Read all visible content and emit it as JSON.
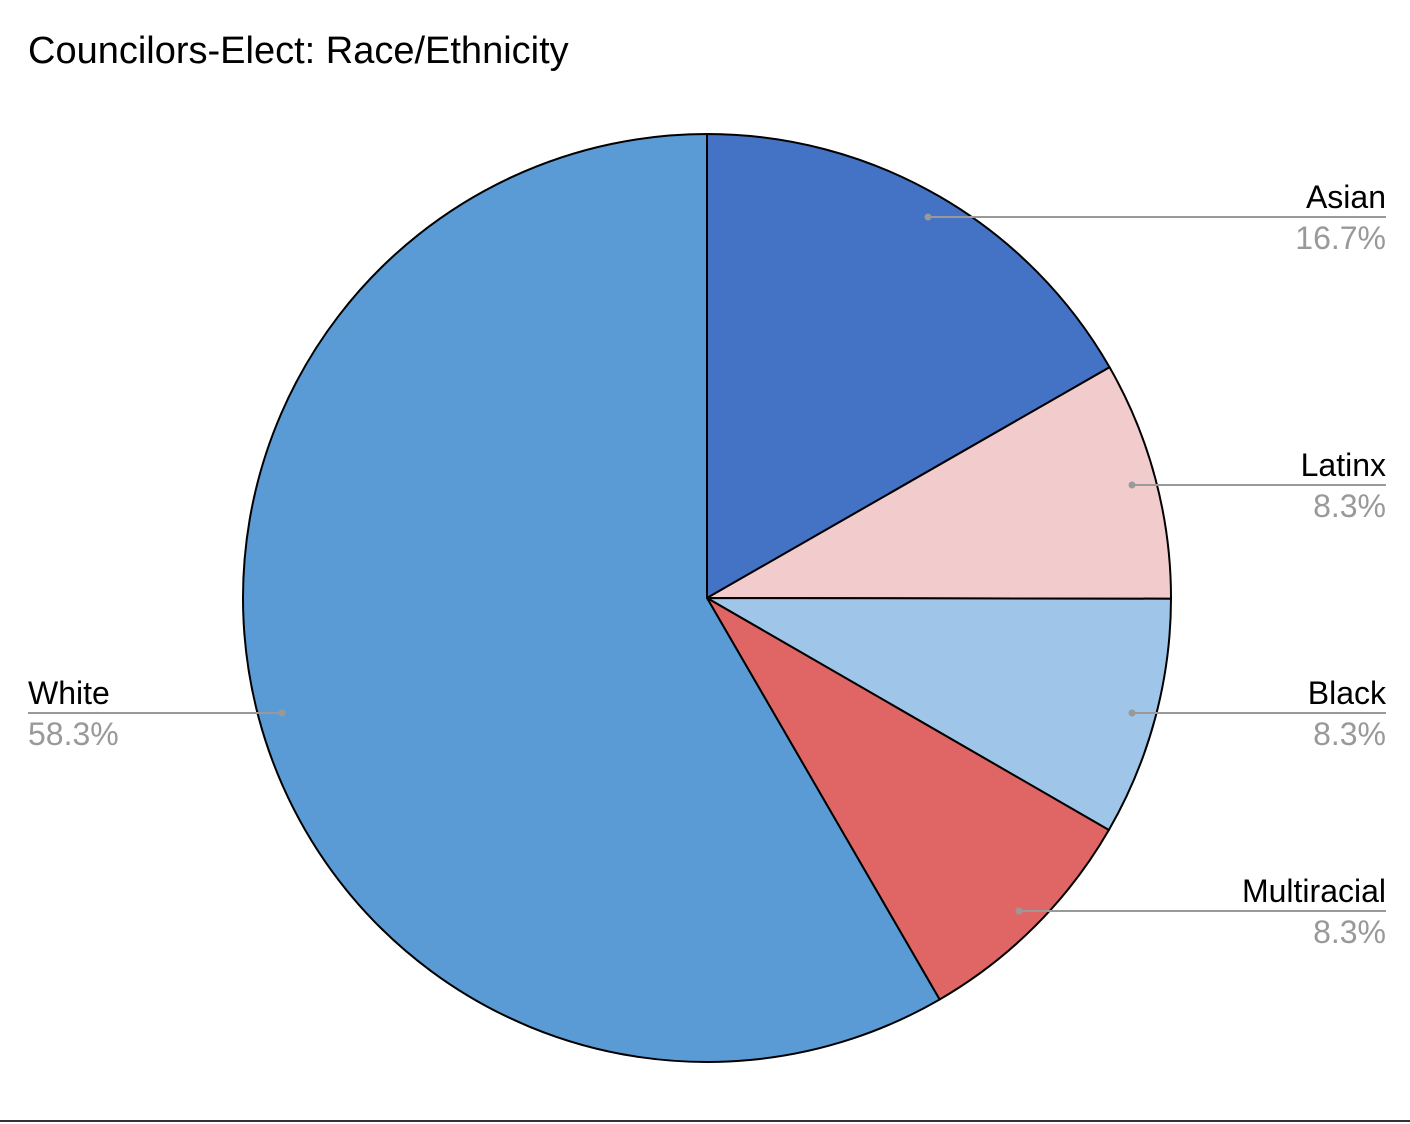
{
  "chart_data": {
    "type": "pie",
    "title": "Councilors-Elect: Race/Ethnicity",
    "slices": [
      {
        "label": "Asian",
        "value": 16.7,
        "value_label": "16.7%",
        "color": "#4472c4"
      },
      {
        "label": "Latinx",
        "value": 8.3,
        "value_label": "8.3%",
        "color": "#f2cccd"
      },
      {
        "label": "Black",
        "value": 8.3,
        "value_label": "8.3%",
        "color": "#9fc5e8"
      },
      {
        "label": "Multiracial",
        "value": 8.3,
        "value_label": "8.3%",
        "color": "#e06666"
      },
      {
        "label": "White",
        "value": 58.3,
        "value_label": "58.3%",
        "color": "#5b9bd5"
      }
    ],
    "legend": "none",
    "label_style": "leader-lines"
  },
  "colors": {
    "outline": "#000000",
    "leader_line": "#999999",
    "category_text": "#000000",
    "value_text": "#999999"
  }
}
